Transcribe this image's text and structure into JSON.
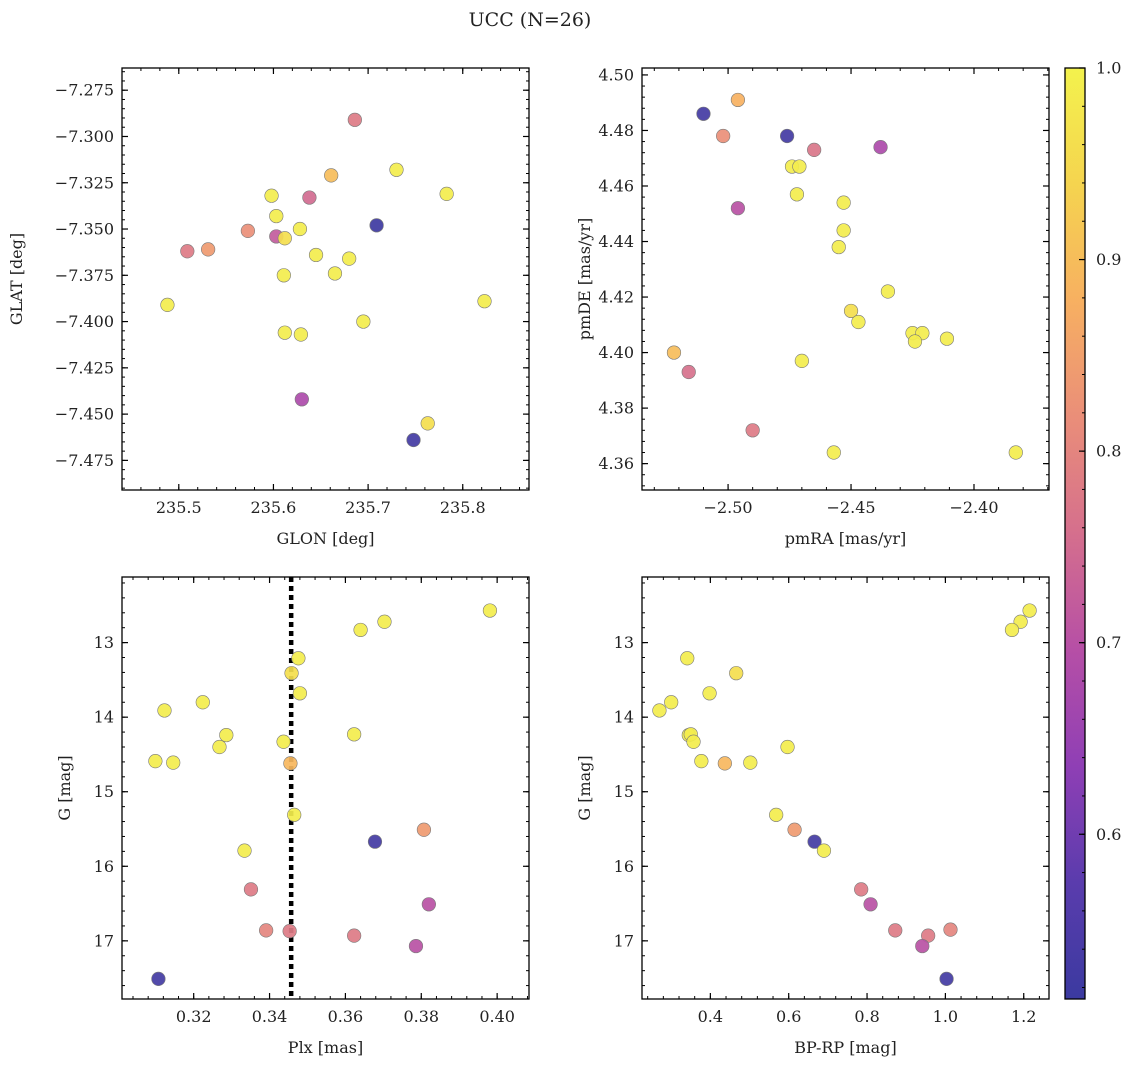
{
  "figure_title": "UCC (N=26)",
  "colors": {
    "colormap": "plasma-truncated",
    "stops": [
      "#3b3aa0",
      "#5a3cad",
      "#8f3fb5",
      "#b64fa6",
      "#d56f8d",
      "#ea8e79",
      "#f7b061",
      "#f5d44f",
      "#f3f24d"
    ],
    "ref_line": "#000000",
    "marker_edge": "#7a7a7a",
    "axes": "#000000"
  },
  "colorbar": {
    "ticks": [
      "1.0",
      "0.9",
      "0.8",
      "0.7",
      "0.6"
    ],
    "tick_values": [
      1.0,
      0.9,
      0.8,
      0.7,
      0.6
    ],
    "min": 0.514,
    "max": 1.0
  },
  "chart_data": [
    {
      "type": "scatter",
      "id": "p1",
      "xlabel": "GLON [deg]",
      "ylabel": "GLAT [deg]",
      "xlim": [
        235.44,
        235.87
      ],
      "ylim": [
        -7.491,
        -7.263
      ],
      "invert_y": false,
      "xticks": [
        235.5,
        235.6,
        235.7,
        235.8
      ],
      "xtick_labels": [
        "235.5",
        "235.6",
        "235.7",
        "235.8"
      ],
      "yticks": [
        -7.275,
        -7.3,
        -7.325,
        -7.35,
        -7.375,
        -7.4,
        -7.425,
        -7.45,
        -7.475
      ],
      "ytick_labels": [
        "−7.275",
        "−7.300",
        "−7.325",
        "−7.350",
        "−7.375",
        "−7.400",
        "−7.425",
        "−7.450",
        "−7.475"
      ],
      "xminor": 0.02,
      "yminor": 0.005,
      "points": [
        {
          "x": 235.686,
          "y": -7.291,
          "c": 0.78
        },
        {
          "x": 235.661,
          "y": -7.321,
          "c": 0.9
        },
        {
          "x": 235.73,
          "y": -7.318,
          "c": 0.99
        },
        {
          "x": 235.783,
          "y": -7.331,
          "c": 0.99
        },
        {
          "x": 235.598,
          "y": -7.332,
          "c": 0.99
        },
        {
          "x": 235.638,
          "y": -7.333,
          "c": 0.75
        },
        {
          "x": 235.603,
          "y": -7.343,
          "c": 0.99
        },
        {
          "x": 235.709,
          "y": -7.348,
          "c": 0.52
        },
        {
          "x": 235.628,
          "y": -7.35,
          "c": 0.99
        },
        {
          "x": 235.573,
          "y": -7.351,
          "c": 0.82
        },
        {
          "x": 235.603,
          "y": -7.354,
          "c": 0.72
        },
        {
          "x": 235.612,
          "y": -7.355,
          "c": 0.96
        },
        {
          "x": 235.509,
          "y": -7.362,
          "c": 0.78
        },
        {
          "x": 235.531,
          "y": -7.361,
          "c": 0.84
        },
        {
          "x": 235.645,
          "y": -7.364,
          "c": 0.99
        },
        {
          "x": 235.68,
          "y": -7.366,
          "c": 0.99
        },
        {
          "x": 235.611,
          "y": -7.375,
          "c": 0.99
        },
        {
          "x": 235.665,
          "y": -7.374,
          "c": 0.99
        },
        {
          "x": 235.488,
          "y": -7.391,
          "c": 0.99
        },
        {
          "x": 235.823,
          "y": -7.389,
          "c": 0.99
        },
        {
          "x": 235.695,
          "y": -7.4,
          "c": 0.99
        },
        {
          "x": 235.612,
          "y": -7.406,
          "c": 0.99
        },
        {
          "x": 235.629,
          "y": -7.407,
          "c": 0.99
        },
        {
          "x": 235.63,
          "y": -7.442,
          "c": 0.68
        },
        {
          "x": 235.763,
          "y": -7.455,
          "c": 0.96
        },
        {
          "x": 235.748,
          "y": -7.464,
          "c": 0.53
        }
      ]
    },
    {
      "type": "scatter",
      "id": "p2",
      "xlabel": "pmRA [mas/yr]",
      "ylabel": "pmDE [mas/yr]",
      "xlim": [
        -2.535,
        -2.3695
      ],
      "ylim": [
        4.3505,
        4.5025
      ],
      "invert_y": false,
      "xticks": [
        -2.5,
        -2.45,
        -2.4
      ],
      "xtick_labels": [
        "−2.50",
        "−2.45",
        "−2.40"
      ],
      "yticks": [
        4.36,
        4.38,
        4.4,
        4.42,
        4.44,
        4.46,
        4.48,
        4.5
      ],
      "ytick_labels": [
        "4.36",
        "4.38",
        "4.40",
        "4.42",
        "4.44",
        "4.46",
        "4.48",
        "4.50"
      ],
      "xminor": 0.01,
      "yminor": 0.004,
      "points": [
        {
          "x": -2.496,
          "y": 4.491,
          "c": 0.88
        },
        {
          "x": -2.51,
          "y": 4.486,
          "c": 0.53
        },
        {
          "x": -2.476,
          "y": 4.478,
          "c": 0.53
        },
        {
          "x": -2.502,
          "y": 4.478,
          "c": 0.82
        },
        {
          "x": -2.465,
          "y": 4.473,
          "c": 0.77
        },
        {
          "x": -2.438,
          "y": 4.474,
          "c": 0.68
        },
        {
          "x": -2.474,
          "y": 4.467,
          "c": 0.99
        },
        {
          "x": -2.471,
          "y": 4.467,
          "c": 0.99
        },
        {
          "x": -2.472,
          "y": 4.457,
          "c": 0.99
        },
        {
          "x": -2.453,
          "y": 4.454,
          "c": 0.99
        },
        {
          "x": -2.496,
          "y": 4.452,
          "c": 0.7
        },
        {
          "x": -2.453,
          "y": 4.444,
          "c": 0.99
        },
        {
          "x": -2.455,
          "y": 4.438,
          "c": 0.99
        },
        {
          "x": -2.435,
          "y": 4.422,
          "c": 0.99
        },
        {
          "x": -2.45,
          "y": 4.415,
          "c": 0.96
        },
        {
          "x": -2.447,
          "y": 4.411,
          "c": 0.99
        },
        {
          "x": -2.425,
          "y": 4.407,
          "c": 0.99
        },
        {
          "x": -2.421,
          "y": 4.407,
          "c": 0.99
        },
        {
          "x": -2.424,
          "y": 4.404,
          "c": 0.99
        },
        {
          "x": -2.411,
          "y": 4.405,
          "c": 0.99
        },
        {
          "x": -2.522,
          "y": 4.4,
          "c": 0.9
        },
        {
          "x": -2.47,
          "y": 4.397,
          "c": 0.99
        },
        {
          "x": -2.516,
          "y": 4.393,
          "c": 0.76
        },
        {
          "x": -2.49,
          "y": 4.372,
          "c": 0.78
        },
        {
          "x": -2.457,
          "y": 4.364,
          "c": 0.99
        },
        {
          "x": -2.383,
          "y": 4.364,
          "c": 0.99
        }
      ]
    },
    {
      "type": "scatter",
      "id": "p3",
      "xlabel": "Plx [mas]",
      "ylabel": "G [mag]",
      "xlim": [
        0.3011,
        0.4084
      ],
      "ylim": [
        12.12,
        17.78
      ],
      "invert_y": true,
      "vline": 0.3457,
      "xticks": [
        0.32,
        0.34,
        0.36,
        0.38,
        0.4
      ],
      "xtick_labels": [
        "0.32",
        "0.34",
        "0.36",
        "0.38",
        "0.40"
      ],
      "yticks": [
        13,
        14,
        15,
        16,
        17
      ],
      "ytick_labels": [
        "13",
        "14",
        "15",
        "16",
        "17"
      ],
      "xminor": 0.004,
      "yminor": 0.2,
      "points": [
        {
          "x": 0.3981,
          "y": 12.57,
          "c": 0.99
        },
        {
          "x": 0.3703,
          "y": 12.72,
          "c": 0.99
        },
        {
          "x": 0.364,
          "y": 12.83,
          "c": 0.99
        },
        {
          "x": 0.3476,
          "y": 13.21,
          "c": 0.99
        },
        {
          "x": 0.3458,
          "y": 13.41,
          "c": 0.96
        },
        {
          "x": 0.348,
          "y": 13.68,
          "c": 0.99
        },
        {
          "x": 0.3224,
          "y": 13.8,
          "c": 0.99
        },
        {
          "x": 0.3123,
          "y": 13.91,
          "c": 0.99
        },
        {
          "x": 0.3286,
          "y": 14.24,
          "c": 0.99
        },
        {
          "x": 0.3623,
          "y": 14.23,
          "c": 0.99
        },
        {
          "x": 0.3437,
          "y": 14.33,
          "c": 0.99
        },
        {
          "x": 0.3268,
          "y": 14.4,
          "c": 0.99
        },
        {
          "x": 0.3099,
          "y": 14.59,
          "c": 0.99
        },
        {
          "x": 0.3146,
          "y": 14.61,
          "c": 0.99
        },
        {
          "x": 0.3455,
          "y": 14.62,
          "c": 0.89
        },
        {
          "x": 0.3465,
          "y": 15.31,
          "c": 0.99
        },
        {
          "x": 0.3807,
          "y": 15.51,
          "c": 0.84
        },
        {
          "x": 0.3678,
          "y": 15.67,
          "c": 0.53
        },
        {
          "x": 0.3334,
          "y": 15.79,
          "c": 0.99
        },
        {
          "x": 0.3351,
          "y": 16.31,
          "c": 0.78
        },
        {
          "x": 0.382,
          "y": 16.51,
          "c": 0.7
        },
        {
          "x": 0.3391,
          "y": 16.86,
          "c": 0.8
        },
        {
          "x": 0.3453,
          "y": 16.87,
          "c": 0.78
        },
        {
          "x": 0.3623,
          "y": 16.93,
          "c": 0.78
        },
        {
          "x": 0.3786,
          "y": 17.07,
          "c": 0.7
        },
        {
          "x": 0.3107,
          "y": 17.51,
          "c": 0.53
        }
      ]
    },
    {
      "type": "scatter",
      "id": "p4",
      "xlabel": "BP-RP [mag]",
      "ylabel": "G [mag]",
      "xlim": [
        0.2255,
        1.2645
      ],
      "ylim": [
        12.12,
        17.78
      ],
      "invert_y": true,
      "xticks": [
        0.4,
        0.6,
        0.8,
        1.0,
        1.2
      ],
      "xtick_labels": [
        "0.4",
        "0.6",
        "0.8",
        "1.0",
        "1.2"
      ],
      "yticks": [
        13,
        14,
        15,
        16,
        17
      ],
      "ytick_labels": [
        "13",
        "14",
        "15",
        "16",
        "17"
      ],
      "xminor": 0.04,
      "yminor": 0.2,
      "points": [
        {
          "x": 1.215,
          "y": 12.57,
          "c": 0.99
        },
        {
          "x": 1.192,
          "y": 12.72,
          "c": 0.99
        },
        {
          "x": 1.17,
          "y": 12.83,
          "c": 0.99
        },
        {
          "x": 0.341,
          "y": 13.21,
          "c": 0.99
        },
        {
          "x": 0.466,
          "y": 13.41,
          "c": 0.96
        },
        {
          "x": 0.398,
          "y": 13.68,
          "c": 0.99
        },
        {
          "x": 0.3,
          "y": 13.8,
          "c": 0.99
        },
        {
          "x": 0.27,
          "y": 13.91,
          "c": 0.99
        },
        {
          "x": 0.345,
          "y": 14.24,
          "c": 0.99
        },
        {
          "x": 0.35,
          "y": 14.23,
          "c": 0.99
        },
        {
          "x": 0.357,
          "y": 14.33,
          "c": 0.99
        },
        {
          "x": 0.597,
          "y": 14.4,
          "c": 0.99
        },
        {
          "x": 0.377,
          "y": 14.59,
          "c": 0.99
        },
        {
          "x": 0.502,
          "y": 14.61,
          "c": 0.99
        },
        {
          "x": 0.437,
          "y": 14.62,
          "c": 0.89
        },
        {
          "x": 0.568,
          "y": 15.31,
          "c": 0.99
        },
        {
          "x": 0.615,
          "y": 15.51,
          "c": 0.84
        },
        {
          "x": 0.666,
          "y": 15.67,
          "c": 0.53
        },
        {
          "x": 0.69,
          "y": 15.79,
          "c": 0.99
        },
        {
          "x": 0.785,
          "y": 16.31,
          "c": 0.78
        },
        {
          "x": 0.809,
          "y": 16.51,
          "c": 0.7
        },
        {
          "x": 0.872,
          "y": 16.86,
          "c": 0.78
        },
        {
          "x": 1.013,
          "y": 16.85,
          "c": 0.8
        },
        {
          "x": 0.956,
          "y": 16.93,
          "c": 0.78
        },
        {
          "x": 0.941,
          "y": 17.07,
          "c": 0.7
        },
        {
          "x": 1.003,
          "y": 17.51,
          "c": 0.53
        }
      ]
    }
  ]
}
